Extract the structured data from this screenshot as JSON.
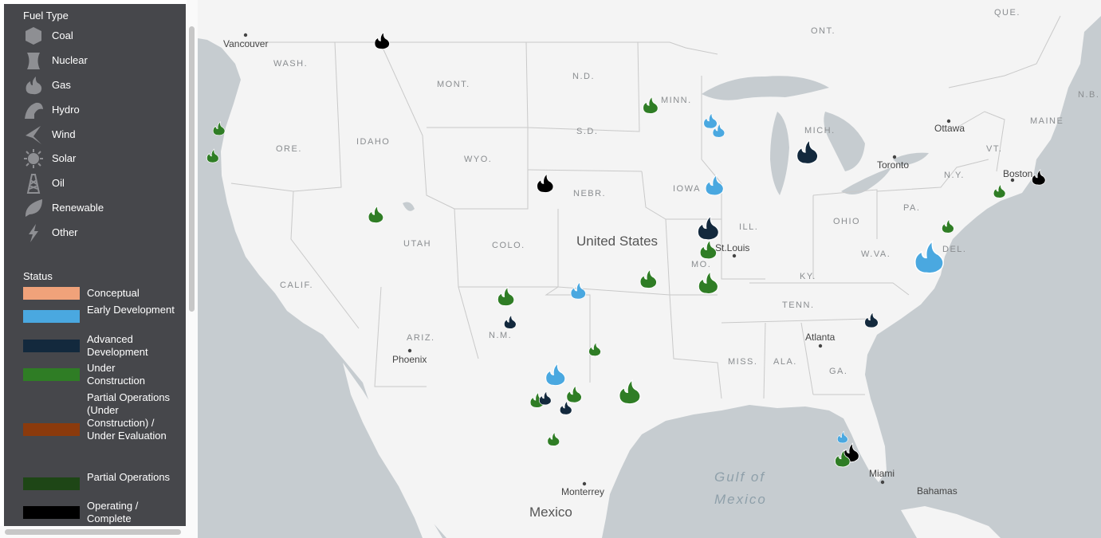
{
  "legend": {
    "fuel_title": "Fuel Type",
    "fuel_types": [
      {
        "label": "Coal",
        "icon": "coal-icon"
      },
      {
        "label": "Nuclear",
        "icon": "nuclear-icon"
      },
      {
        "label": "Gas",
        "icon": "gas-icon"
      },
      {
        "label": "Hydro",
        "icon": "hydro-icon"
      },
      {
        "label": "Wind",
        "icon": "wind-icon"
      },
      {
        "label": "Solar",
        "icon": "solar-icon"
      },
      {
        "label": "Oil",
        "icon": "oil-icon"
      },
      {
        "label": "Renewable",
        "icon": "renewable-icon"
      },
      {
        "label": "Other",
        "icon": "other-icon"
      }
    ],
    "status_title": "Status",
    "statuses": [
      {
        "label": "Conceptual",
        "color": "#f0a27a"
      },
      {
        "label": "Early Development",
        "color": "#4aa8e0"
      },
      {
        "label": "Advanced Development",
        "color": "#13293d"
      },
      {
        "label": "Under Construction",
        "color": "#2f7d25"
      },
      {
        "label": "Partial Operations (Under Construction) / Under Evaluation",
        "color": "#8b3a0c"
      },
      {
        "label": "Partial Operations",
        "color": "#1e4616"
      },
      {
        "label": "Operating / Complete",
        "color": "#000000"
      }
    ]
  },
  "map": {
    "country_label": "United States",
    "neighbor_labels": {
      "mexico": "Mexico",
      "gulf_1": "Gulf of",
      "gulf_2": "Mexico"
    },
    "state_labels": {
      "wash": "WASH.",
      "ore": "ORE.",
      "calif": "CALIF.",
      "idaho": "IDAHO",
      "mont": "MONT.",
      "wyo": "WYO.",
      "utah": "UTAH",
      "ariz": "ARIZ.",
      "colo": "COLO.",
      "nm": "N.M.",
      "nd": "N.D.",
      "sd": "S.D.",
      "nebr": "NEBR.",
      "minn": "MINN.",
      "iowa": "IOWA",
      "mo": "MO.",
      "ill": "ILL.",
      "mich": "MICH.",
      "ohio": "OHIO",
      "ky": "KY.",
      "tenn": "TENN.",
      "miss": "MISS.",
      "ala": "ALA.",
      "ga": "GA.",
      "pa": "PA.",
      "wva": "W.VA.",
      "ny": "N.Y.",
      "vt": "VT.",
      "maine": "MAINE",
      "del": "DEL.",
      "ont": "ONT.",
      "que": "QUE.",
      "nb": "N.B."
    },
    "cities": {
      "vancouver": "Vancouver",
      "phoenix": "Phoenix",
      "st_louis": "St.Louis",
      "atlanta": "Atlanta",
      "ottawa": "Ottawa",
      "toronto": "Toronto",
      "boston": "Boston",
      "miami": "Miami",
      "monterrey": "Monterrey",
      "bahamas": "Bahamas"
    },
    "markers": [
      {
        "status": "Operating / Complete",
        "lon": -104.1,
        "lat": 48.6,
        "size": 1
      },
      {
        "status": "Under Construction",
        "lon": -112.0,
        "lat": 44.1,
        "size": 0.8
      },
      {
        "status": "Under Construction",
        "lon": -112.3,
        "lat": 42.7,
        "size": 0.8
      },
      {
        "status": "Early Development",
        "lon": -117.5,
        "lat": 41.0,
        "size": 0.9
      },
      {
        "status": "Operating / Complete",
        "lon": -122.0,
        "lat": 37.8,
        "size": 0.9
      },
      {
        "status": "Under Construction",
        "lon": -119.4,
        "lat": 35.1,
        "size": 0.8
      },
      {
        "status": "Early Development",
        "lon": -117.2,
        "lat": 33.3,
        "size": 0.8
      },
      {
        "status": "Under Construction",
        "lon": -104.4,
        "lat": 39.7,
        "size": 1
      },
      {
        "status": "Operating / Complete",
        "lon": -96.2,
        "lat": 41.3,
        "size": 1.1
      },
      {
        "status": "Under Construction",
        "lon": -91.1,
        "lat": 45.3,
        "size": 1
      },
      {
        "status": "Early Development",
        "lon": -88.2,
        "lat": 44.5,
        "size": 0.9
      },
      {
        "status": "Early Development",
        "lon": -87.8,
        "lat": 44.0,
        "size": 0.8
      },
      {
        "status": "Early Development",
        "lon": -88.0,
        "lat": 41.2,
        "size": 1.2
      },
      {
        "status": "Advanced Development",
        "lon": -83.5,
        "lat": 42.9,
        "size": 1.4
      },
      {
        "status": "Advanced Development",
        "lon": -88.3,
        "lat": 39.0,
        "size": 1.4
      },
      {
        "status": "Under Construction",
        "lon": -88.3,
        "lat": 37.9,
        "size": 1.1
      },
      {
        "status": "Under Construction",
        "lon": -88.3,
        "lat": 36.2,
        "size": 1.3
      },
      {
        "status": "Under Construction",
        "lon": -91.2,
        "lat": 36.4,
        "size": 1.1
      },
      {
        "status": "Early Development",
        "lon": -94.6,
        "lat": 35.8,
        "size": 1
      },
      {
        "status": "Under Construction",
        "lon": -98.1,
        "lat": 35.5,
        "size": 1.1
      },
      {
        "status": "Advanced Development",
        "lon": -97.9,
        "lat": 34.2,
        "size": 0.8
      },
      {
        "status": "Under Construction",
        "lon": -93.8,
        "lat": 32.8,
        "size": 0.8
      },
      {
        "status": "Early Development",
        "lon": -95.7,
        "lat": 31.5,
        "size": 1.3
      },
      {
        "status": "Under Construction",
        "lon": -92.1,
        "lat": 30.6,
        "size": 1.4
      },
      {
        "status": "Under Construction",
        "lon": -96.6,
        "lat": 30.2,
        "size": 0.9
      },
      {
        "status": "Advanced Development",
        "lon": -96.2,
        "lat": 30.3,
        "size": 0.8
      },
      {
        "status": "Under Construction",
        "lon": -94.8,
        "lat": 30.5,
        "size": 1
      },
      {
        "status": "Advanced Development",
        "lon": -95.2,
        "lat": 29.8,
        "size": 0.8
      },
      {
        "status": "Under Construction",
        "lon": -95.8,
        "lat": 28.2,
        "size": 0.8
      },
      {
        "status": "Advanced Development",
        "lon": -80.4,
        "lat": 34.3,
        "size": 0.9
      },
      {
        "status": "Early Development",
        "lon": -77.6,
        "lat": 37.5,
        "size": 1.9
      },
      {
        "status": "Under Construction",
        "lon": -76.7,
        "lat": 39.1,
        "size": 0.8
      },
      {
        "status": "Under Construction",
        "lon": -74.2,
        "lat": 40.9,
        "size": 0.8
      },
      {
        "status": "Operating / Complete",
        "lon": -72.3,
        "lat": 41.6,
        "size": 0.9
      },
      {
        "status": "Early Development",
        "lon": -81.8,
        "lat": 28.3,
        "size": 0.7
      },
      {
        "status": "Operating / Complete",
        "lon": -81.4,
        "lat": 27.5,
        "size": 1.1
      },
      {
        "status": "Under Construction",
        "lon": -81.8,
        "lat": 27.2,
        "size": 1
      }
    ]
  }
}
